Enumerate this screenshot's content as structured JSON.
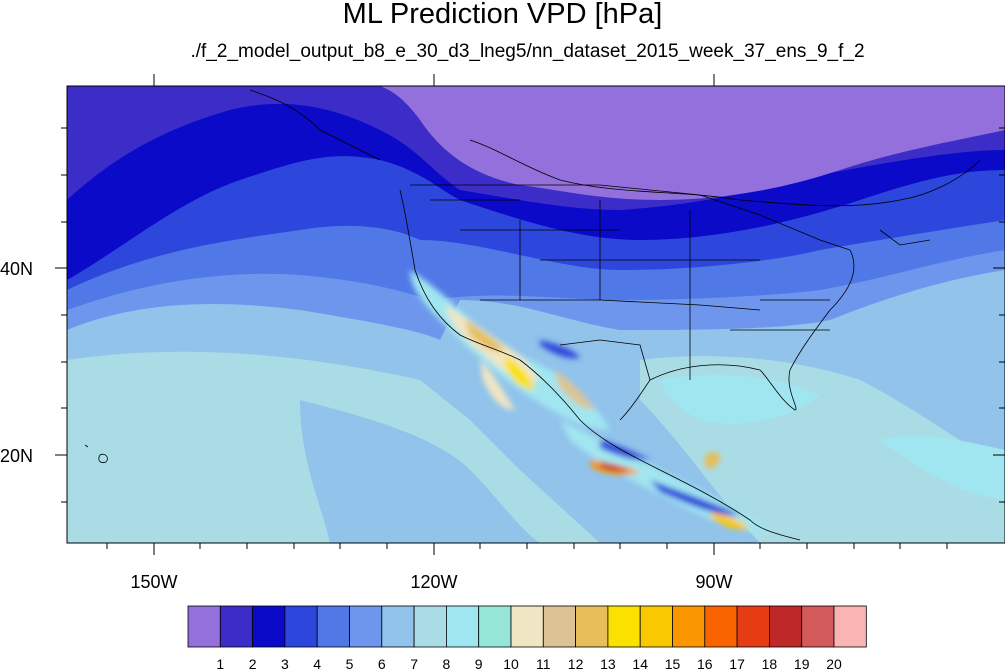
{
  "title": "ML Prediction VPD [hPa]",
  "subtitle": "./f_2_model_output_b8_e_30_d3_lneg5/nn_dataset_2015_week_37_ens_9_f_2",
  "axes": {
    "x_ticks": [
      {
        "value": -150,
        "label": "150W"
      },
      {
        "value": -120,
        "label": "120W"
      },
      {
        "value": -90,
        "label": "90W"
      }
    ],
    "y_ticks": [
      {
        "value": 40,
        "label": "40N"
      },
      {
        "value": 20,
        "label": "20N"
      }
    ],
    "lon_range": [
      -160,
      -58
    ],
    "lat_range": [
      10,
      60
    ]
  },
  "colorbar": {
    "levels": [
      "1",
      "2",
      "3",
      "4",
      "5",
      "6",
      "7",
      "8",
      "9",
      "10",
      "11",
      "12",
      "13",
      "14",
      "15",
      "16",
      "17",
      "18",
      "19",
      "20"
    ],
    "colors": [
      "#9370DB",
      "#3C2DC8",
      "#0A0AC8",
      "#2D46DC",
      "#5078E6",
      "#6E96EC",
      "#91C3EB",
      "#AADCE6",
      "#A0E6F0",
      "#96E6D7",
      "#F0E6C3",
      "#DCC396",
      "#E6BE5A",
      "#FAE100",
      "#FAC800",
      "#FA9600",
      "#FA6400",
      "#E63C14",
      "#BE2828",
      "#D25A5A",
      "#FAB4B4"
    ]
  }
}
